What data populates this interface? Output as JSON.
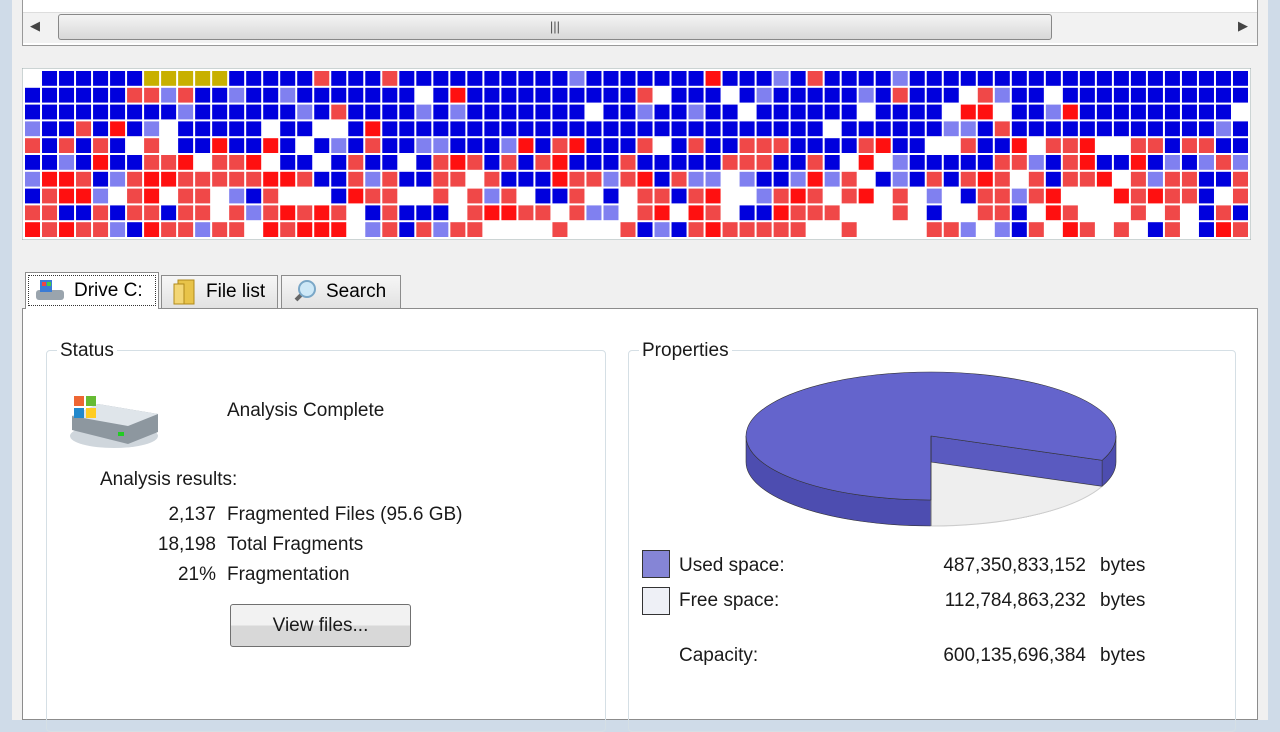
{
  "tabs": [
    "Drive C:",
    "File list",
    "Search"
  ],
  "status": {
    "title": "Status",
    "message": "Analysis Complete",
    "results_heading": "Analysis results:",
    "results": [
      {
        "value": "2,137",
        "label": "Fragmented Files (95.6 GB)"
      },
      {
        "value": "18,198",
        "label": "Total Fragments"
      },
      {
        "value": "21%",
        "label": "Fragmentation"
      }
    ],
    "button": "View files..."
  },
  "properties": {
    "title": "Properties",
    "rows": [
      {
        "label": "Used space:",
        "value": "487,350,833,152",
        "unit": "bytes"
      },
      {
        "label": "Free space:",
        "value": "112,784,863,232",
        "unit": "bytes"
      },
      {
        "label": "Capacity:",
        "value": "600,135,696,384",
        "unit": "bytes"
      }
    ]
  }
}
